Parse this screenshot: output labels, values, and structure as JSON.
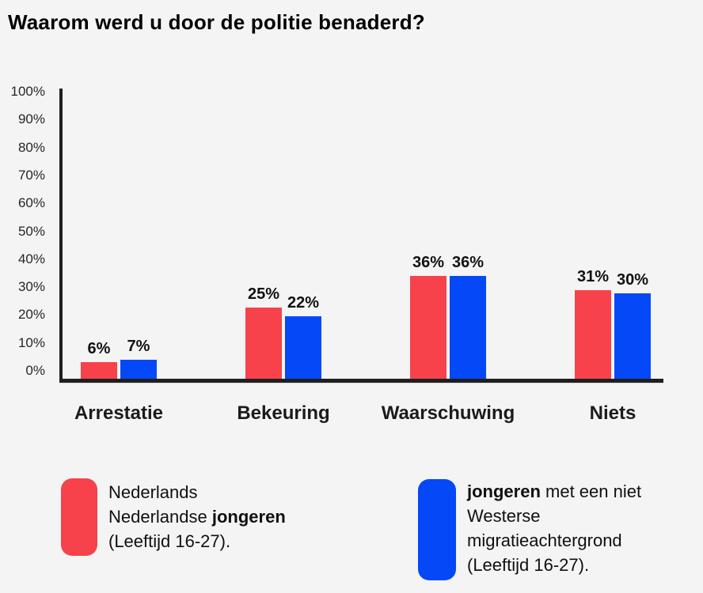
{
  "title": "Waarom werd u door de politie benaderd?",
  "chart_data": {
    "type": "bar",
    "title": "Waarom werd u door de politie benaderd?",
    "categories": [
      "Arrestatie",
      "Bekeuring",
      "Waarschuwing",
      "Niets"
    ],
    "series": [
      {
        "id": "red",
        "name": "Nederlands Nederlandse jongeren (Leeftijd 16-27).",
        "color": "#f8424b",
        "values": [
          6,
          25,
          36,
          31
        ]
      },
      {
        "id": "blue",
        "name": "jongeren met een niet Westerse migratieachtergrond (Leeftijd 16-27).",
        "color": "#0448f8",
        "values": [
          7,
          22,
          36,
          30
        ]
      }
    ],
    "value_suffix": "%",
    "xlabel": "",
    "ylabel": "",
    "ylim": [
      0,
      100
    ],
    "ytick_step": 10,
    "yticks": [
      "100%",
      "90%",
      "80%",
      "70%",
      "60%",
      "50%",
      "40%",
      "30%",
      "20%",
      "10%",
      "0%"
    ],
    "grid": false,
    "legend_position": "bottom",
    "value_labels": true
  },
  "legend": {
    "red": {
      "line1": "Nederlands",
      "line2_normal": "Nederlandse ",
      "line2_bold": "jongeren",
      "line3": "(Leeftijd 16-27)."
    },
    "blue": {
      "line1_bold": "jongeren",
      "line1_normal": " met een niet",
      "line2": "Westerse",
      "line3": "migratieachtergrond",
      "line4": "(Leeftijd 16-27)."
    }
  },
  "colors": {
    "background": "#f4f4f5",
    "axis": "#1f1f1f",
    "red_series": "#f8424b",
    "blue_series": "#0448f8"
  }
}
